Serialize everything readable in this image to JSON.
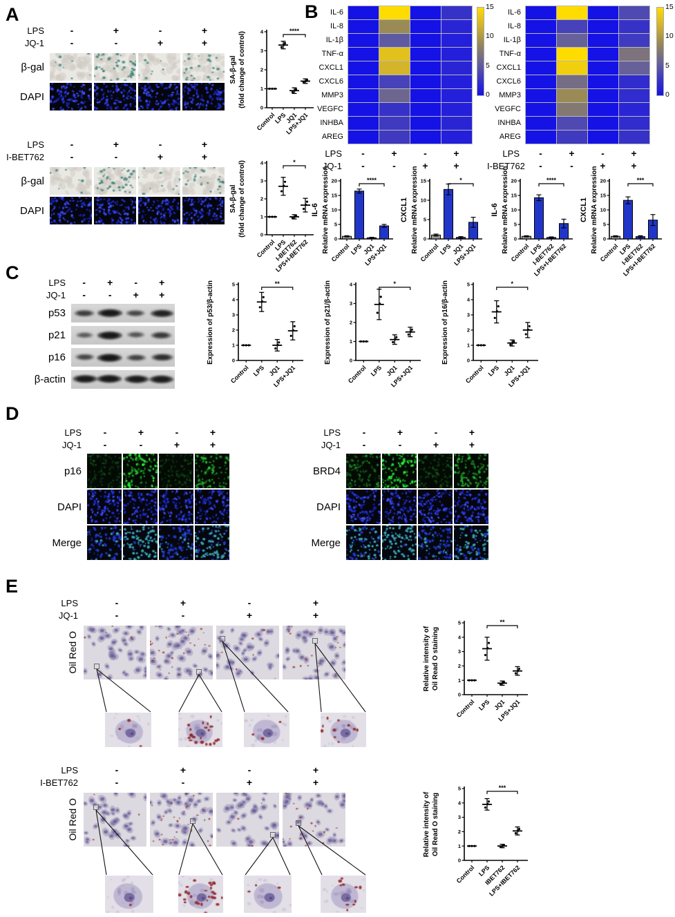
{
  "panels": {
    "A": {
      "label": "A",
      "blocks": [
        {
          "treatments": [
            {
              "name": "LPS",
              "values": [
                "-",
                "+",
                "-",
                "+"
              ]
            },
            {
              "name": "JQ-1",
              "values": [
                "-",
                "-",
                "+",
                "+"
              ]
            }
          ],
          "rows": [
            {
              "label": "β-gal",
              "stain": "begal",
              "levels": [
                0.08,
                0.9,
                0.08,
                0.45
              ]
            },
            {
              "label": "DAPI",
              "stain": "dapi",
              "levels": [
                1,
                1,
                1,
                1
              ]
            }
          ]
        },
        {
          "treatments": [
            {
              "name": "LPS",
              "values": [
                "-",
                "+",
                "-",
                "+"
              ]
            },
            {
              "name": "I-BET762",
              "values": [
                "-",
                "-",
                "+",
                "+"
              ]
            }
          ],
          "rows": [
            {
              "label": "β-gal",
              "stain": "begal",
              "levels": [
                0.08,
                0.85,
                0.12,
                0.5
              ]
            },
            {
              "label": "DAPI",
              "stain": "dapi",
              "levels": [
                1,
                1,
                1,
                1
              ]
            }
          ]
        }
      ]
    },
    "B": {
      "label": "B"
    },
    "C": {
      "label": "C",
      "treatments": [
        {
          "name": "LPS",
          "values": [
            "-",
            "+",
            "-",
            "+"
          ]
        },
        {
          "name": "JQ-1",
          "values": [
            "-",
            "-",
            "+",
            "+"
          ]
        }
      ],
      "blots": [
        {
          "label": "p53",
          "intensities": [
            0.55,
            1.0,
            0.45,
            0.85
          ]
        },
        {
          "label": "p21",
          "intensities": [
            0.3,
            1.0,
            0.35,
            0.6
          ]
        },
        {
          "label": "p16",
          "intensities": [
            0.45,
            1.0,
            0.5,
            0.7
          ]
        },
        {
          "label": "β-actin",
          "intensities": [
            0.95,
            1.0,
            0.95,
            0.95
          ]
        }
      ]
    },
    "D": {
      "label": "D",
      "blocks": [
        {
          "treatments": [
            {
              "name": "LPS",
              "values": [
                "-",
                "+",
                "-",
                "+"
              ]
            },
            {
              "name": "JQ-1",
              "values": [
                "-",
                "-",
                "+",
                "+"
              ]
            }
          ],
          "rows": [
            {
              "label": "p16",
              "stain": "ifgreen",
              "levels": [
                0.25,
                1.0,
                0.2,
                0.75
              ]
            },
            {
              "label": "DAPI",
              "stain": "dapi",
              "levels": [
                1,
                1,
                1,
                1
              ]
            },
            {
              "label": "Merge",
              "stain": "ifmerge",
              "levels": [
                0.25,
                1.0,
                0.2,
                0.75
              ]
            }
          ]
        },
        {
          "treatments": [
            {
              "name": "LPS",
              "values": [
                "-",
                "+",
                "-",
                "+"
              ]
            },
            {
              "name": "JQ-1",
              "values": [
                "-",
                "-",
                "+",
                "+"
              ]
            }
          ],
          "rows": [
            {
              "label": "BRD4",
              "stain": "ifgreen",
              "levels": [
                0.55,
                1.0,
                0.3,
                0.75
              ]
            },
            {
              "label": "DAPI",
              "stain": "dapi",
              "levels": [
                1,
                1,
                1,
                1
              ]
            },
            {
              "label": "Merge",
              "stain": "ifmerge",
              "levels": [
                0.55,
                1.0,
                0.3,
                0.75
              ]
            }
          ]
        }
      ]
    },
    "E": {
      "label": "E",
      "blocks": [
        {
          "treatments": [
            {
              "name": "LPS",
              "values": [
                "-",
                "+",
                "-",
                "+"
              ]
            },
            {
              "name": "JQ-1",
              "values": [
                "-",
                "-",
                "+",
                "+"
              ]
            }
          ],
          "rows": [
            {
              "label": "Oil Red O",
              "stain": "oilred",
              "levels": [
                0.1,
                0.75,
                0.15,
                0.4
              ]
            }
          ],
          "insets": {
            "stain": "inset",
            "levels": [
              0.1,
              0.9,
              0.1,
              0.4
            ]
          }
        },
        {
          "treatments": [
            {
              "name": "LPS",
              "values": [
                "-",
                "+",
                "-",
                "+"
              ]
            },
            {
              "name": "I-BET762",
              "values": [
                "-",
                "-",
                "+",
                "+"
              ]
            }
          ],
          "rows": [
            {
              "label": "Oil Red O",
              "stain": "oilred",
              "levels": [
                0.1,
                0.85,
                0.1,
                0.45
              ]
            }
          ],
          "insets": {
            "stain": "inset",
            "levels": [
              0.05,
              1.0,
              0.1,
              0.45
            ]
          }
        }
      ]
    }
  },
  "chart_data": {
    "a1": {
      "type": "scatter",
      "ylabel": [
        "SA-β-gal",
        "(fold change of control)"
      ],
      "categories": [
        "Control",
        "LPS",
        "JQ1",
        "LPS+JQ1"
      ],
      "means": [
        1.0,
        3.3,
        0.9,
        1.4
      ],
      "errors": [
        0.05,
        0.2,
        0.15,
        0.12
      ],
      "ylim": [
        0,
        4
      ],
      "yticks": [
        0,
        1,
        2,
        3,
        4
      ],
      "sig": {
        "i1": 1,
        "i2": 3,
        "label": "****"
      }
    },
    "a2": {
      "type": "scatter",
      "ylabel": [
        "SA-β-gal",
        "(fold change of control)"
      ],
      "categories": [
        "Control",
        "LPS",
        "I-BET762",
        "LPS+I-BET762"
      ],
      "means": [
        1.0,
        2.7,
        1.0,
        1.65
      ],
      "errors": [
        0.05,
        0.5,
        0.12,
        0.38
      ],
      "ylim": [
        0,
        4
      ],
      "yticks": [
        0,
        1,
        2,
        3,
        4
      ],
      "sig": {
        "i1": 1,
        "i2": 3,
        "label": "*"
      }
    },
    "b1": {
      "type": "bar",
      "gene": "IL-6",
      "ylabel": "Relative mRNA expression",
      "categories": [
        "Control",
        "LPS",
        "JQ1",
        "LPS+JQ1"
      ],
      "values": [
        0.9,
        16.5,
        0.4,
        4.5
      ],
      "errors": [
        0.2,
        0.7,
        0.15,
        0.5
      ],
      "ylim": [
        0,
        20
      ],
      "yticks": [
        0,
        5,
        10,
        15,
        20
      ],
      "sig": {
        "i1": 1,
        "i2": 3,
        "label": "****"
      }
    },
    "b2": {
      "type": "bar",
      "gene": "CXCL1",
      "ylabel": "Relative mRNA expression",
      "categories": [
        "Control",
        "LPS",
        "JQ1",
        "LPS+JQ1"
      ],
      "values": [
        1.0,
        12.8,
        0.4,
        4.3
      ],
      "errors": [
        0.25,
        1.4,
        0.2,
        1.3
      ],
      "ylim": [
        0,
        15
      ],
      "yticks": [
        0,
        5,
        10,
        15
      ],
      "sig": {
        "i1": 1,
        "i2": 3,
        "label": "*"
      }
    },
    "b3": {
      "type": "bar",
      "gene": "IL-6",
      "ylabel": "Relative mRNA expression",
      "categories": [
        "Control",
        "LPS",
        "I-BET762",
        "LPS+I-BET762"
      ],
      "values": [
        0.9,
        14.2,
        0.5,
        5.3
      ],
      "errors": [
        0.2,
        1.0,
        0.2,
        1.5
      ],
      "ylim": [
        0,
        20
      ],
      "yticks": [
        0,
        5,
        10,
        15,
        20
      ],
      "sig": {
        "i1": 1,
        "i2": 3,
        "label": "****"
      }
    },
    "b4": {
      "type": "bar",
      "gene": "CXCL1",
      "ylabel": "Relative mRNA expression",
      "categories": [
        "Control",
        "LPS",
        "I-BET762",
        "LPS+I-BET762"
      ],
      "values": [
        0.9,
        13.3,
        0.8,
        6.5
      ],
      "errors": [
        0.2,
        1.2,
        0.3,
        1.9
      ],
      "ylim": [
        0,
        20
      ],
      "yticks": [
        0,
        5,
        10,
        15,
        20
      ],
      "sig": {
        "i1": 1,
        "i2": 3,
        "label": "***"
      }
    },
    "c1": {
      "type": "scatter",
      "ylabel": [
        "Expression of p53/β-actin"
      ],
      "categories": [
        "Control",
        "LPS",
        "JQ1",
        "LPS+JQ1"
      ],
      "means": [
        1.0,
        3.85,
        1.0,
        1.95
      ],
      "errors": [
        0.05,
        0.63,
        0.38,
        0.6
      ],
      "ylim": [
        0,
        5
      ],
      "yticks": [
        0,
        1,
        2,
        3,
        4,
        5
      ],
      "sig": {
        "i1": 1,
        "i2": 3,
        "label": "**"
      }
    },
    "c2": {
      "type": "scatter",
      "ylabel": [
        "Expression of p21/β-actin"
      ],
      "categories": [
        "Control",
        "LPS",
        "JQ1",
        "LPS+JQ1"
      ],
      "means": [
        1.0,
        2.95,
        1.1,
        1.5
      ],
      "errors": [
        0.04,
        0.8,
        0.25,
        0.25
      ],
      "ylim": [
        0,
        4
      ],
      "yticks": [
        0,
        1,
        2,
        3,
        4
      ],
      "sig": {
        "i1": 1,
        "i2": 3,
        "label": "*"
      }
    },
    "c3": {
      "type": "scatter",
      "ylabel": [
        "Expression of p16/β-actin"
      ],
      "categories": [
        "Control",
        "LPS",
        "JQ1",
        "LPS+JQ1"
      ],
      "means": [
        1.0,
        3.2,
        1.15,
        2.0
      ],
      "errors": [
        0.05,
        0.73,
        0.2,
        0.5
      ],
      "ylim": [
        0,
        5
      ],
      "yticks": [
        0,
        1,
        2,
        3,
        4,
        5
      ],
      "sig": {
        "i1": 1,
        "i2": 3,
        "label": "*"
      }
    },
    "e1": {
      "type": "scatter",
      "ylabel": [
        "Relative intensity of",
        "Oil Read O staining"
      ],
      "categories": [
        "Control",
        "LPS",
        "JQ1",
        "LPS+JQ1"
      ],
      "means": [
        1.0,
        3.2,
        0.8,
        1.65
      ],
      "errors": [
        0.05,
        0.8,
        0.15,
        0.3
      ],
      "ylim": [
        0,
        5
      ],
      "yticks": [
        0,
        1,
        2,
        3,
        4,
        5
      ],
      "sig": {
        "i1": 1,
        "i2": 3,
        "label": "**"
      }
    },
    "e2": {
      "type": "scatter",
      "ylabel": [
        "Relative intensity of",
        "Oil Read O staining"
      ],
      "categories": [
        "Control",
        "LPS",
        "IBET762",
        "LPS+IBET762"
      ],
      "means": [
        1.0,
        3.9,
        1.0,
        2.05
      ],
      "errors": [
        0.05,
        0.4,
        0.12,
        0.28
      ],
      "ylim": [
        0,
        5
      ],
      "yticks": [
        0,
        1,
        2,
        3,
        4,
        5
      ],
      "sig": {
        "i1": 1,
        "i2": 3,
        "label": "***"
      }
    },
    "h1": {
      "type": "heatmap",
      "rows": [
        "IL-6",
        "IL-8",
        "IL-1β",
        "TNF-α",
        "CXCL1",
        "CXCL6",
        "MMP3",
        "VEGFC",
        "INHBA",
        "AREG"
      ],
      "col_treatments": [
        {
          "name": "LPS",
          "values": [
            "-",
            "+",
            "-",
            "+"
          ]
        },
        {
          "name": "JQ-1",
          "values": [
            "-",
            "-",
            "+",
            "+"
          ]
        }
      ],
      "values": [
        [
          0,
          15,
          0,
          2.5
        ],
        [
          0,
          9,
          0,
          1.5
        ],
        [
          0,
          5,
          0,
          1
        ],
        [
          0,
          13,
          0,
          1
        ],
        [
          0,
          12,
          0,
          1.5
        ],
        [
          0,
          3.5,
          0,
          1
        ],
        [
          0,
          6,
          0,
          1
        ],
        [
          0,
          2.5,
          0,
          1
        ],
        [
          0,
          3,
          0,
          1.5
        ],
        [
          0,
          3,
          0,
          1
        ]
      ],
      "scale": {
        "min": 0,
        "max": 15,
        "ticks": [
          15,
          10,
          5,
          0
        ]
      }
    },
    "h2": {
      "type": "heatmap",
      "rows": [
        "IL-6",
        "IL-8",
        "IL-1β",
        "TNF-α",
        "CXCL1",
        "CXCL6",
        "MMP3",
        "VEGFC",
        "INHBA",
        "AREG"
      ],
      "col_treatments": [
        {
          "name": "LPS",
          "values": [
            "-",
            "+",
            "-",
            "+"
          ]
        },
        {
          "name": "I-BET762",
          "values": [
            "-",
            "-",
            "+",
            "+"
          ]
        }
      ],
      "values": [
        [
          0,
          15,
          0,
          4
        ],
        [
          0,
          3.5,
          0,
          2.5
        ],
        [
          0,
          5.5,
          0,
          3
        ],
        [
          0,
          15,
          0,
          7
        ],
        [
          0,
          14,
          0,
          5.5
        ],
        [
          0,
          6.5,
          0,
          2
        ],
        [
          0,
          9,
          0,
          2
        ],
        [
          0,
          7.5,
          0,
          1.5
        ],
        [
          0,
          4,
          0,
          2
        ],
        [
          0,
          3,
          0,
          2.5
        ]
      ],
      "scale": {
        "min": 0,
        "max": 15,
        "ticks": [
          15,
          10,
          5,
          0
        ]
      }
    }
  },
  "colors": {
    "bar_blue": "#2136c8",
    "bar_gray": "#9a9a9a",
    "heat_low": "#1512e6",
    "heat_high": "#ffdc00"
  }
}
